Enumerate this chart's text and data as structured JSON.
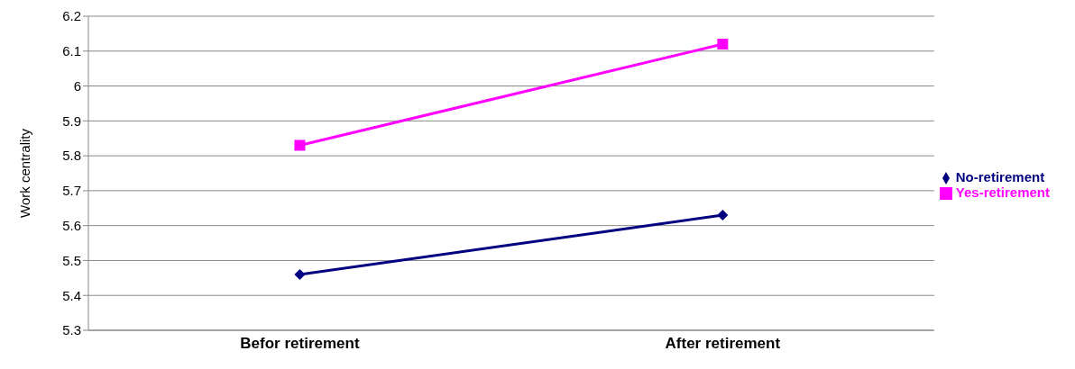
{
  "chart_data": {
    "type": "line",
    "ylabel": "Work centrality",
    "categories": [
      "Befor retirement",
      "After retirement"
    ],
    "series": [
      {
        "name": "No-retirement",
        "color": "#000080",
        "values": [
          5.46,
          5.63
        ],
        "marker": "diamond"
      },
      {
        "name": "Yes-retirement",
        "color": "#ff00ff",
        "values": [
          5.83,
          6.12
        ],
        "marker": "square"
      }
    ],
    "ylim": [
      5.3,
      6.2
    ],
    "yticks": [
      5.3,
      5.4,
      5.5,
      5.6,
      5.7,
      5.8,
      5.9,
      6,
      6.1,
      6.2
    ],
    "grid": "y",
    "legend": "right",
    "line_style": "solid"
  }
}
